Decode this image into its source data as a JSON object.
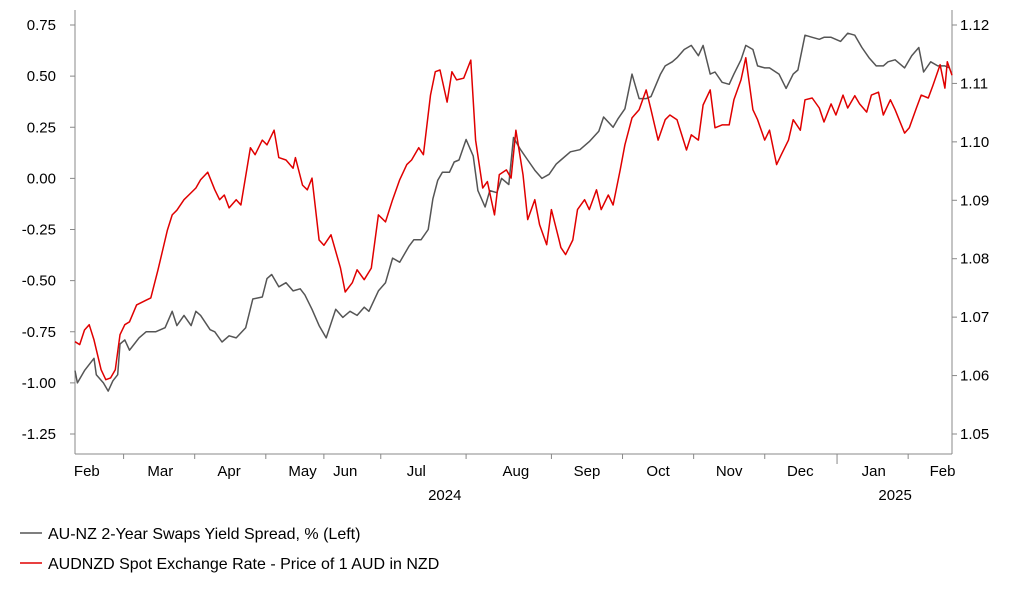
{
  "chart_data": {
    "type": "line",
    "title": "",
    "x_unit": "days since start of Feb 2024",
    "x_range": [
      0,
      370
    ],
    "left_axis": {
      "label": "",
      "ylim": [
        -1.25,
        0.75
      ],
      "ticks": [
        "0.75",
        "0.50",
        "0.25",
        "0.00",
        "-0.25",
        "-0.50",
        "-0.75",
        "-1.00",
        "-1.25"
      ],
      "tick_values": [
        0.75,
        0.5,
        0.25,
        0,
        -0.25,
        -0.5,
        -0.75,
        -1.0,
        -1.25
      ]
    },
    "right_axis": {
      "label": "",
      "ylim": [
        1.05,
        1.12
      ],
      "ticks": [
        "1.12",
        "1.11",
        "1.10",
        "1.09",
        "1.08",
        "1.07",
        "1.06",
        "1.05"
      ],
      "tick_values": [
        1.12,
        1.11,
        1.1,
        1.09,
        1.08,
        1.07,
        1.06,
        1.05
      ]
    },
    "x_labels": [
      {
        "label": "Feb",
        "day": 5
      },
      {
        "label": "Mar",
        "day": 36
      },
      {
        "label": "Apr",
        "day": 65
      },
      {
        "label": "May",
        "day": 96
      },
      {
        "label": "Jun",
        "day": 114
      },
      {
        "label": "Jul",
        "day": 144
      },
      {
        "label": "Aug",
        "day": 186
      },
      {
        "label": "Sep",
        "day": 216
      },
      {
        "label": "Oct",
        "day": 246
      },
      {
        "label": "Nov",
        "day": 276
      },
      {
        "label": "Dec",
        "day": 306
      },
      {
        "label": "Jan",
        "day": 337
      },
      {
        "label": "Feb",
        "day": 366
      }
    ],
    "year_labels": [
      {
        "label": "2024",
        "day": 156
      },
      {
        "label": "2025",
        "day": 346
      }
    ],
    "legend_position": "bottom-left",
    "grid": false,
    "series": [
      {
        "name": "AU-NZ 2-Year Swaps Yield Spread, % (Left)",
        "axis": "left",
        "color": "#555555",
        "x": [
          0,
          1,
          4,
          8,
          9,
          12,
          14,
          16,
          18,
          19,
          21,
          23,
          25,
          27,
          30,
          34,
          38,
          41,
          43,
          46,
          49,
          51,
          53,
          57,
          59,
          62,
          65,
          68,
          72,
          75,
          79,
          81,
          83,
          86,
          89,
          92,
          95,
          97,
          100,
          103,
          106,
          110,
          113,
          116,
          119,
          122,
          124,
          128,
          131,
          134,
          137,
          141,
          143,
          146,
          149,
          151,
          153,
          155,
          158,
          160,
          162,
          165,
          168,
          170,
          173,
          175,
          178,
          180,
          183,
          185,
          188,
          191,
          194,
          197,
          200,
          203,
          205,
          209,
          213,
          217,
          221,
          223,
          227,
          229,
          232,
          235,
          238,
          241,
          243,
          247,
          249,
          252,
          254,
          257,
          260,
          263,
          265,
          268,
          270,
          273,
          276,
          278,
          281,
          283,
          286,
          288,
          291,
          293,
          297,
          300,
          303,
          305,
          308,
          311,
          314,
          316,
          319,
          323,
          326,
          329,
          332,
          335,
          338,
          341,
          343,
          346,
          350,
          353,
          356,
          358,
          361,
          364,
          367,
          369
        ],
        "values": [
          -0.94,
          -1.0,
          -0.94,
          -0.88,
          -0.96,
          -1.0,
          -1.04,
          -0.99,
          -0.96,
          -0.81,
          -0.79,
          -0.84,
          -0.81,
          -0.78,
          -0.75,
          -0.75,
          -0.73,
          -0.65,
          -0.72,
          -0.67,
          -0.72,
          -0.65,
          -0.67,
          -0.74,
          -0.75,
          -0.8,
          -0.77,
          -0.78,
          -0.73,
          -0.59,
          -0.58,
          -0.49,
          -0.47,
          -0.53,
          -0.51,
          -0.55,
          -0.54,
          -0.57,
          -0.64,
          -0.72,
          -0.78,
          -0.64,
          -0.68,
          -0.65,
          -0.67,
          -0.63,
          -0.65,
          -0.55,
          -0.51,
          -0.39,
          -0.41,
          -0.33,
          -0.3,
          -0.3,
          -0.25,
          -0.1,
          -0.01,
          0.03,
          0.03,
          0.08,
          0.09,
          0.19,
          0.11,
          -0.06,
          -0.14,
          -0.06,
          -0.07,
          0.0,
          -0.03,
          0.2,
          0.14,
          0.09,
          0.04,
          0.0,
          0.02,
          0.07,
          0.09,
          0.13,
          0.14,
          0.18,
          0.23,
          0.3,
          0.25,
          0.29,
          0.34,
          0.51,
          0.39,
          0.39,
          0.4,
          0.51,
          0.55,
          0.57,
          0.59,
          0.63,
          0.65,
          0.6,
          0.65,
          0.51,
          0.52,
          0.47,
          0.46,
          0.51,
          0.58,
          0.65,
          0.63,
          0.55,
          0.54,
          0.54,
          0.51,
          0.44,
          0.51,
          0.53,
          0.7,
          0.69,
          0.68,
          0.69,
          0.69,
          0.67,
          0.71,
          0.7,
          0.64,
          0.59,
          0.55,
          0.55,
          0.57,
          0.58,
          0.54,
          0.6,
          0.64,
          0.52,
          0.57,
          0.55,
          0.55,
          0.54
        ]
      },
      {
        "name": "AUDNZD Spot Exchange Rate - Price of 1 AUD in NZD",
        "axis": "right",
        "color": "#e00000",
        "x": [
          0,
          2,
          4,
          6,
          8,
          11,
          13,
          15,
          17,
          19,
          21,
          23,
          26,
          30,
          32,
          35,
          37,
          39,
          41,
          43,
          46,
          48,
          51,
          53,
          56,
          59,
          61,
          63,
          65,
          68,
          70,
          74,
          76,
          79,
          81,
          84,
          86,
          89,
          92,
          93,
          96,
          98,
          100,
          103,
          105,
          108,
          112,
          114,
          117,
          119,
          122,
          125,
          128,
          131,
          134,
          137,
          140,
          142,
          145,
          147,
          150,
          152,
          154,
          157,
          159,
          161,
          164,
          167,
          169,
          172,
          174,
          177,
          179,
          182,
          184,
          186,
          189,
          191,
          194,
          196,
          199,
          201,
          204,
          205,
          207,
          210,
          212,
          215,
          217,
          220,
          222,
          225,
          227,
          230,
          232,
          235,
          238,
          241,
          243,
          246,
          249,
          251,
          254,
          258,
          260,
          263,
          265,
          268,
          270,
          273,
          276,
          278,
          281,
          283,
          286,
          288,
          291,
          293,
          296,
          298,
          301,
          303,
          306,
          308,
          311,
          314,
          316,
          319,
          321,
          324,
          326,
          329,
          331,
          334,
          336,
          339,
          341,
          344,
          346,
          350,
          352,
          355,
          357,
          360,
          362,
          365,
          367,
          368,
          370
        ],
        "values": [
          1.0658,
          1.0653,
          1.0678,
          1.0687,
          1.0661,
          1.061,
          1.0593,
          1.0596,
          1.061,
          1.067,
          1.0687,
          1.0692,
          1.0721,
          1.0729,
          1.0733,
          1.0781,
          1.0815,
          1.0849,
          1.0875,
          1.0883,
          1.0901,
          1.0909,
          1.0921,
          1.0935,
          1.0948,
          1.0918,
          1.0901,
          1.0909,
          1.0887,
          1.0901,
          1.0892,
          1.099,
          1.0978,
          1.1003,
          1.0995,
          1.102,
          1.0973,
          1.0969,
          1.0955,
          1.0973,
          1.0926,
          1.0918,
          1.0938,
          1.0832,
          1.0823,
          1.0841,
          1.0784,
          1.0743,
          1.0759,
          1.0781,
          1.0764,
          1.0784,
          1.0875,
          1.0863,
          1.0901,
          1.0935,
          1.0961,
          1.0969,
          1.099,
          1.0978,
          1.108,
          1.112,
          1.1123,
          1.1068,
          1.112,
          1.1106,
          1.1109,
          1.114,
          1.1003,
          1.0921,
          1.0932,
          1.0875,
          1.0944,
          1.0952,
          1.0938,
          1.102,
          1.0944,
          1.0867,
          1.0901,
          1.0858,
          1.0824,
          1.0884,
          1.0836,
          1.0819,
          1.0807,
          1.0832,
          1.0884,
          1.0901,
          1.0884,
          1.0918,
          1.0884,
          1.0909,
          1.0892,
          1.0952,
          1.0995,
          1.1041,
          1.1055,
          1.1089,
          1.1055,
          1.1003,
          1.1038,
          1.1046,
          1.1038,
          1.0986,
          1.1012,
          1.1003,
          1.1063,
          1.1089,
          1.1024,
          1.1029,
          1.1029,
          1.1072,
          1.1106,
          1.1144,
          1.1055,
          1.1038,
          1.1003,
          1.102,
          1.0961,
          1.0978,
          1.1003,
          1.1038,
          1.102,
          1.1072,
          1.1075,
          1.1058,
          1.1034,
          1.1065,
          1.1046,
          1.108,
          1.1058,
          1.1079,
          1.1065,
          1.1051,
          1.108,
          1.1085,
          1.1046,
          1.1072,
          1.1055,
          1.1015,
          1.1024,
          1.1058,
          1.108,
          1.1075,
          1.1097,
          1.1132,
          1.1092,
          1.1137,
          1.1114
        ]
      }
    ]
  }
}
